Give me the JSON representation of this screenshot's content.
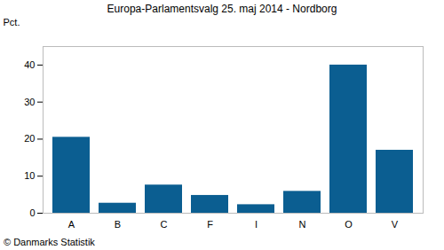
{
  "chart_data": {
    "type": "bar",
    "title": "Europa-Parlamentsvalg 25. maj 2014 - Nordborg",
    "y_label": "Pct.",
    "caption": "© Danmarks Statistik",
    "categories": [
      "A",
      "B",
      "C",
      "F",
      "I",
      "N",
      "O",
      "V"
    ],
    "values": [
      20.5,
      2.7,
      7.6,
      4.8,
      2.3,
      5.9,
      40.0,
      17.0
    ],
    "color": "#0b5e91",
    "ylim": [
      0,
      45
    ],
    "yticks": [
      0,
      10,
      20,
      30,
      40
    ],
    "grid": false
  }
}
